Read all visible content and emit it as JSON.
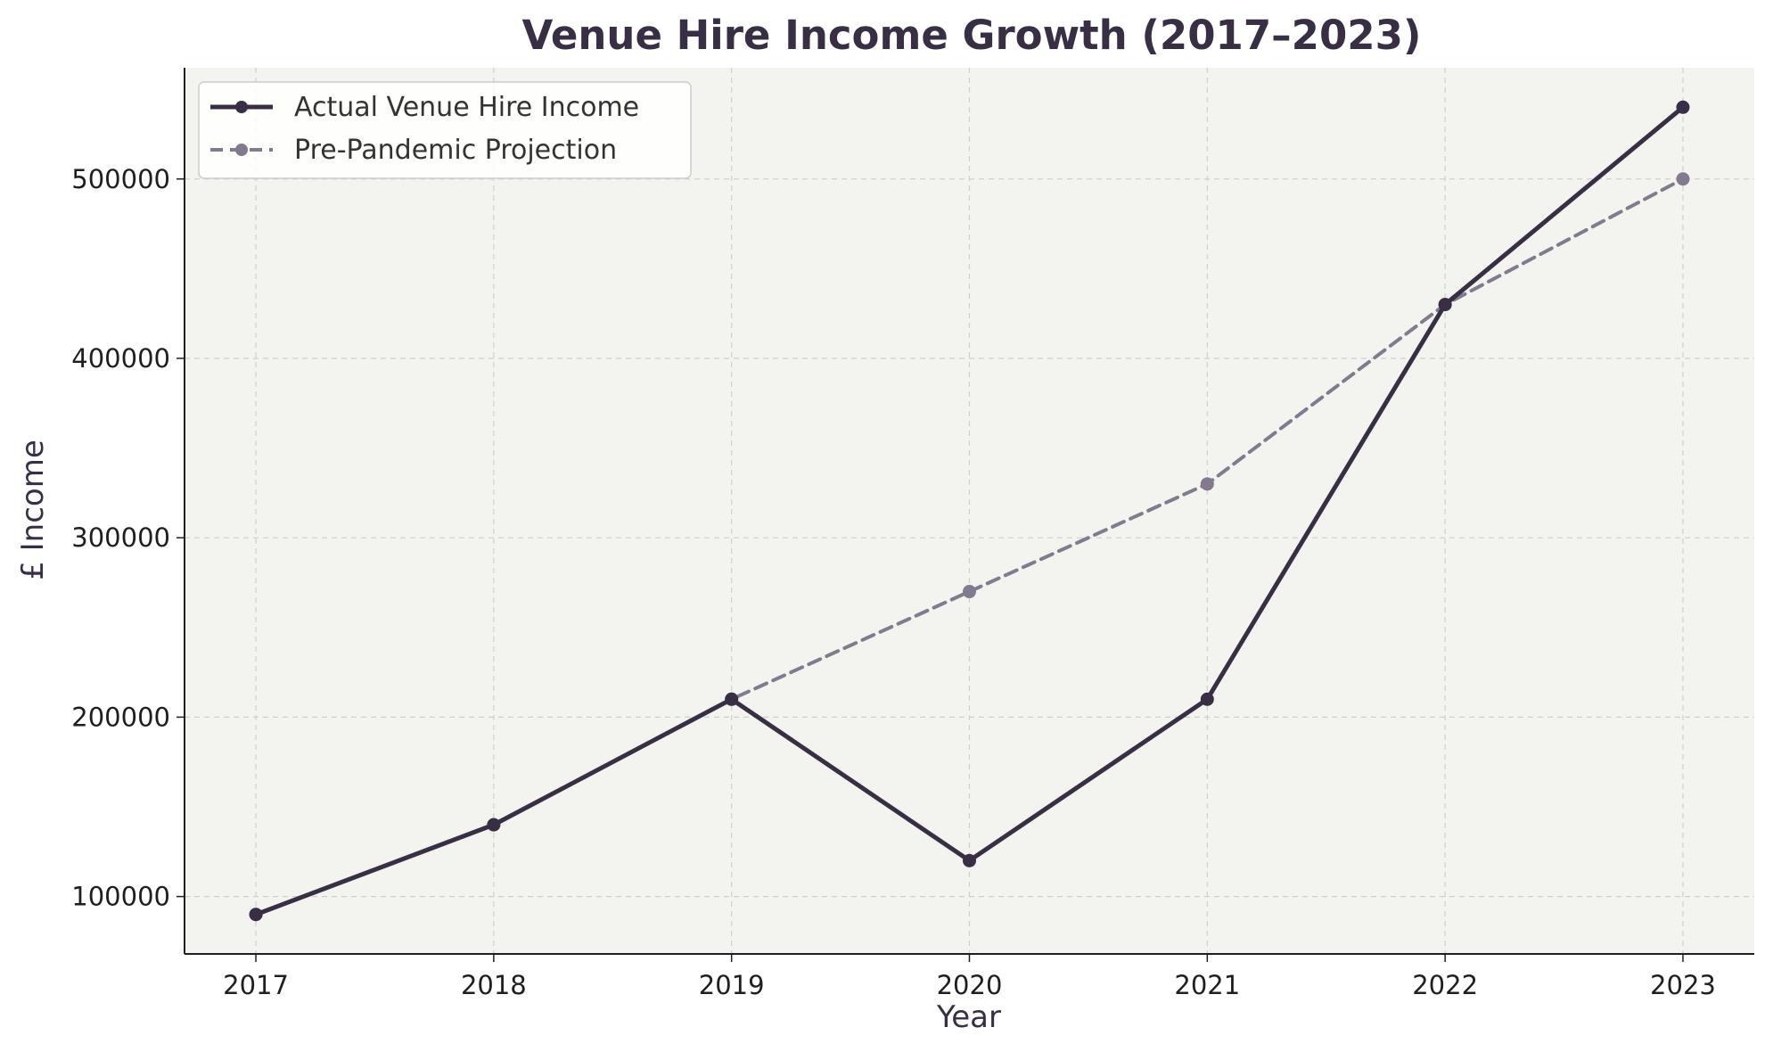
{
  "chart_data": {
    "type": "line",
    "title": "Venue Hire Income Growth (2017–2023)",
    "xlabel": "Year",
    "ylabel": "£ Income",
    "categories": [
      "2017",
      "2018",
      "2019",
      "2020",
      "2021",
      "2022",
      "2023"
    ],
    "x": [
      2017,
      2018,
      2019,
      2020,
      2021,
      2022,
      2023
    ],
    "series": [
      {
        "name": "Actual Venue Hire Income",
        "values": [
          90000,
          140000,
          210000,
          120000,
          210000,
          430000,
          540000
        ],
        "color": "#382f45",
        "style": "solid"
      },
      {
        "name": "Pre-Pandemic Projection",
        "values": [
          90000,
          140000,
          210000,
          270000,
          330000,
          430000,
          500000
        ],
        "color": "#827b8f",
        "style": "dashed"
      }
    ],
    "xlim": [
      2016.7,
      2023.3
    ],
    "ylim": [
      68000,
      562000
    ],
    "yticks": [
      100000,
      200000,
      300000,
      400000,
      500000
    ],
    "ytick_labels": [
      "100000",
      "200000",
      "300000",
      "400000",
      "500000"
    ],
    "grid": true,
    "legend_position": "top-left",
    "plot_background": "#f3f3ef"
  }
}
